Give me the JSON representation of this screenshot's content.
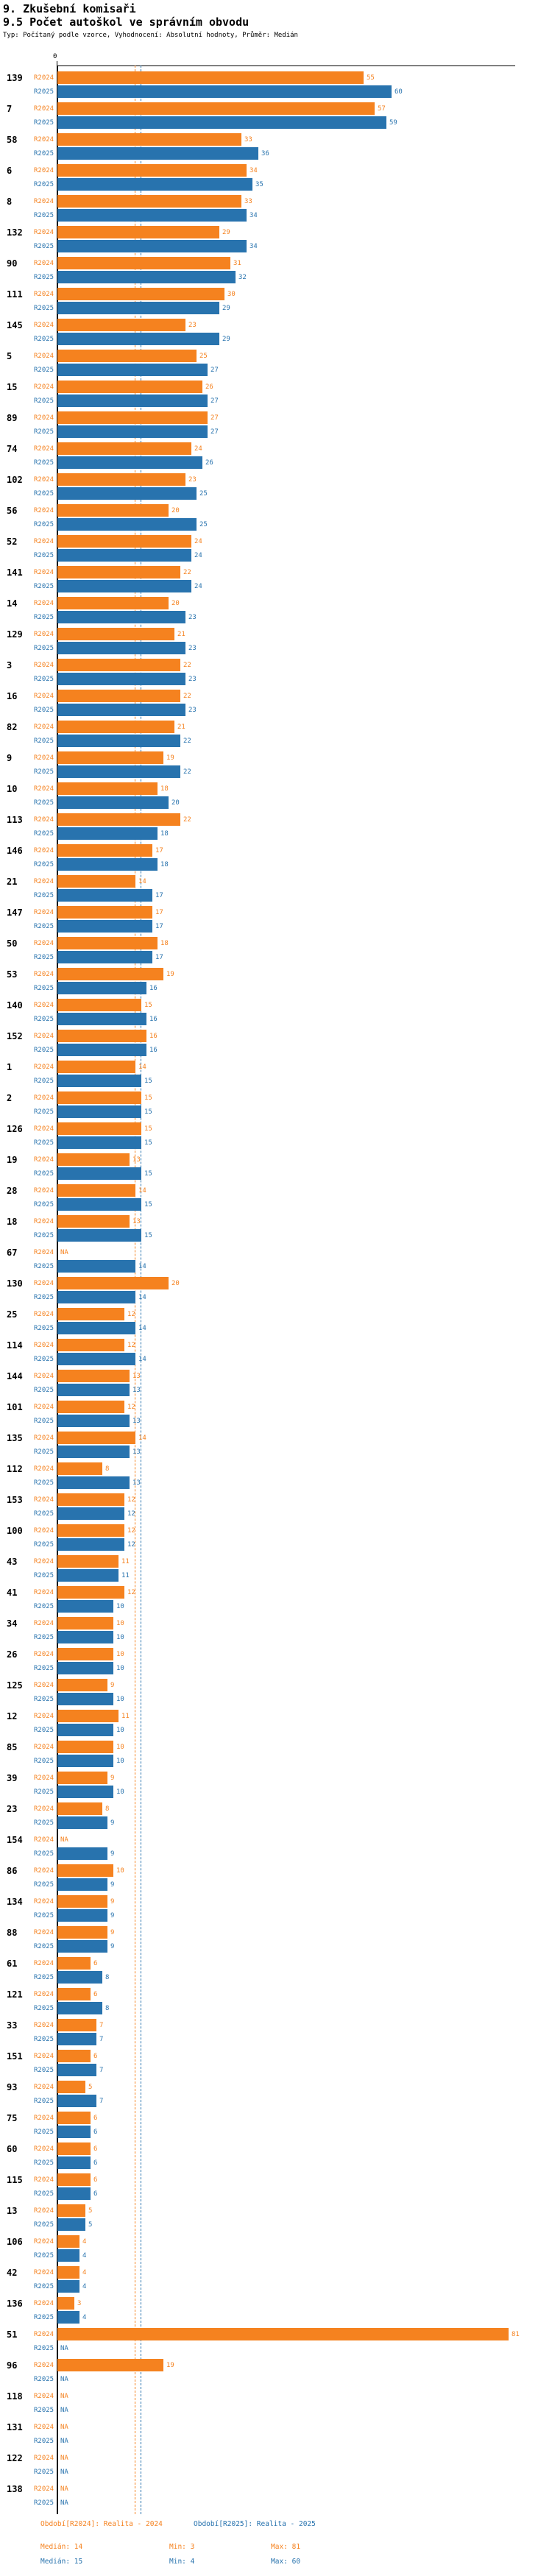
{
  "header": {
    "title": "9. Zkušební komisaři",
    "subtitle": "9.5 Počet autoškol ve správním obvodu",
    "meta": "Typ: Počítaný podle vzorce, Vyhodnocení: Absolutní hodnoty, Průměr: Medián"
  },
  "colors": {
    "r2024": "#f5821f",
    "r2025": "#2873ae",
    "axis": "#000000"
  },
  "chart_data": {
    "type": "bar",
    "orientation": "horizontal",
    "x_zero_label": "0",
    "na_label": "NA",
    "series_labels": [
      "R2024",
      "R2025"
    ],
    "legend": [
      "Období[R2024]: Realita - 2024",
      "Období[R2025]: Realita - 2025"
    ],
    "xlim": [
      0,
      81
    ],
    "medians": {
      "r2024": 14,
      "r2025": 15
    },
    "rows": [
      {
        "id": "139",
        "r2024": 55,
        "r2025": 60
      },
      {
        "id": "7",
        "r2024": 57,
        "r2025": 59
      },
      {
        "id": "58",
        "r2024": 33,
        "r2025": 36
      },
      {
        "id": "6",
        "r2024": 34,
        "r2025": 35
      },
      {
        "id": "8",
        "r2024": 33,
        "r2025": 34
      },
      {
        "id": "132",
        "r2024": 29,
        "r2025": 34
      },
      {
        "id": "90",
        "r2024": 31,
        "r2025": 32
      },
      {
        "id": "111",
        "r2024": 30,
        "r2025": 29
      },
      {
        "id": "145",
        "r2024": 23,
        "r2025": 29
      },
      {
        "id": "5",
        "r2024": 25,
        "r2025": 27
      },
      {
        "id": "15",
        "r2024": 26,
        "r2025": 27
      },
      {
        "id": "89",
        "r2024": 27,
        "r2025": 27
      },
      {
        "id": "74",
        "r2024": 24,
        "r2025": 26
      },
      {
        "id": "102",
        "r2024": 23,
        "r2025": 25
      },
      {
        "id": "56",
        "r2024": 20,
        "r2025": 25
      },
      {
        "id": "52",
        "r2024": 24,
        "r2025": 24
      },
      {
        "id": "141",
        "r2024": 22,
        "r2025": 24
      },
      {
        "id": "14",
        "r2024": 20,
        "r2025": 23
      },
      {
        "id": "129",
        "r2024": 21,
        "r2025": 23
      },
      {
        "id": "3",
        "r2024": 22,
        "r2025": 23
      },
      {
        "id": "16",
        "r2024": 22,
        "r2025": 23
      },
      {
        "id": "82",
        "r2024": 21,
        "r2025": 22
      },
      {
        "id": "9",
        "r2024": 19,
        "r2025": 22
      },
      {
        "id": "10",
        "r2024": 18,
        "r2025": 20
      },
      {
        "id": "113",
        "r2024": 22,
        "r2025": 18
      },
      {
        "id": "146",
        "r2024": 17,
        "r2025": 18
      },
      {
        "id": "21",
        "r2024": 14,
        "r2025": 17
      },
      {
        "id": "147",
        "r2024": 17,
        "r2025": 17
      },
      {
        "id": "50",
        "r2024": 18,
        "r2025": 17
      },
      {
        "id": "53",
        "r2024": 19,
        "r2025": 16
      },
      {
        "id": "140",
        "r2024": 15,
        "r2025": 16
      },
      {
        "id": "152",
        "r2024": 16,
        "r2025": 16
      },
      {
        "id": "1",
        "r2024": 14,
        "r2025": 15
      },
      {
        "id": "2",
        "r2024": 15,
        "r2025": 15
      },
      {
        "id": "126",
        "r2024": 15,
        "r2025": 15
      },
      {
        "id": "19",
        "r2024": 13,
        "r2025": 15
      },
      {
        "id": "28",
        "r2024": 14,
        "r2025": 15
      },
      {
        "id": "18",
        "r2024": 13,
        "r2025": 15
      },
      {
        "id": "67",
        "r2024": null,
        "r2025": 14
      },
      {
        "id": "130",
        "r2024": 20,
        "r2025": 14
      },
      {
        "id": "25",
        "r2024": 12,
        "r2025": 14
      },
      {
        "id": "114",
        "r2024": 12,
        "r2025": 14
      },
      {
        "id": "144",
        "r2024": 13,
        "r2025": 13
      },
      {
        "id": "101",
        "r2024": 12,
        "r2025": 13
      },
      {
        "id": "135",
        "r2024": 14,
        "r2025": 13
      },
      {
        "id": "112",
        "r2024": 8,
        "r2025": 13
      },
      {
        "id": "153",
        "r2024": 12,
        "r2025": 12
      },
      {
        "id": "100",
        "r2024": 12,
        "r2025": 12
      },
      {
        "id": "43",
        "r2024": 11,
        "r2025": 11
      },
      {
        "id": "41",
        "r2024": 12,
        "r2025": 10
      },
      {
        "id": "34",
        "r2024": 10,
        "r2025": 10
      },
      {
        "id": "26",
        "r2024": 10,
        "r2025": 10
      },
      {
        "id": "125",
        "r2024": 9,
        "r2025": 10
      },
      {
        "id": "12",
        "r2024": 11,
        "r2025": 10
      },
      {
        "id": "85",
        "r2024": 10,
        "r2025": 10
      },
      {
        "id": "39",
        "r2024": 9,
        "r2025": 10
      },
      {
        "id": "23",
        "r2024": 8,
        "r2025": 9
      },
      {
        "id": "154",
        "r2024": null,
        "r2025": 9
      },
      {
        "id": "86",
        "r2024": 10,
        "r2025": 9
      },
      {
        "id": "134",
        "r2024": 9,
        "r2025": 9
      },
      {
        "id": "88",
        "r2024": 9,
        "r2025": 9
      },
      {
        "id": "61",
        "r2024": 6,
        "r2025": 8
      },
      {
        "id": "121",
        "r2024": 6,
        "r2025": 8
      },
      {
        "id": "33",
        "r2024": 7,
        "r2025": 7
      },
      {
        "id": "151",
        "r2024": 6,
        "r2025": 7
      },
      {
        "id": "93",
        "r2024": 5,
        "r2025": 7
      },
      {
        "id": "75",
        "r2024": 6,
        "r2025": 6
      },
      {
        "id": "60",
        "r2024": 6,
        "r2025": 6
      },
      {
        "id": "115",
        "r2024": 6,
        "r2025": 6
      },
      {
        "id": "13",
        "r2024": 5,
        "r2025": 5
      },
      {
        "id": "106",
        "r2024": 4,
        "r2025": 4
      },
      {
        "id": "42",
        "r2024": 4,
        "r2025": 4
      },
      {
        "id": "136",
        "r2024": 3,
        "r2025": 4
      },
      {
        "id": "51",
        "r2024": 81,
        "r2025": null
      },
      {
        "id": "96",
        "r2024": 19,
        "r2025": null
      },
      {
        "id": "118",
        "r2024": null,
        "r2025": null
      },
      {
        "id": "131",
        "r2024": null,
        "r2025": null
      },
      {
        "id": "122",
        "r2024": null,
        "r2025": null
      },
      {
        "id": "138",
        "r2024": null,
        "r2025": null
      }
    ]
  },
  "footer": {
    "legend_2024": "Období[R2024]: Realita - 2024",
    "legend_2025": "Období[R2025]: Realita - 2025",
    "stats_2024": {
      "median": "Medián: 14",
      "min": "Min: 3",
      "max": "Max: 81"
    },
    "stats_2025": {
      "median": "Medián: 15",
      "min": "Min: 4",
      "max": "Max: 60"
    }
  }
}
